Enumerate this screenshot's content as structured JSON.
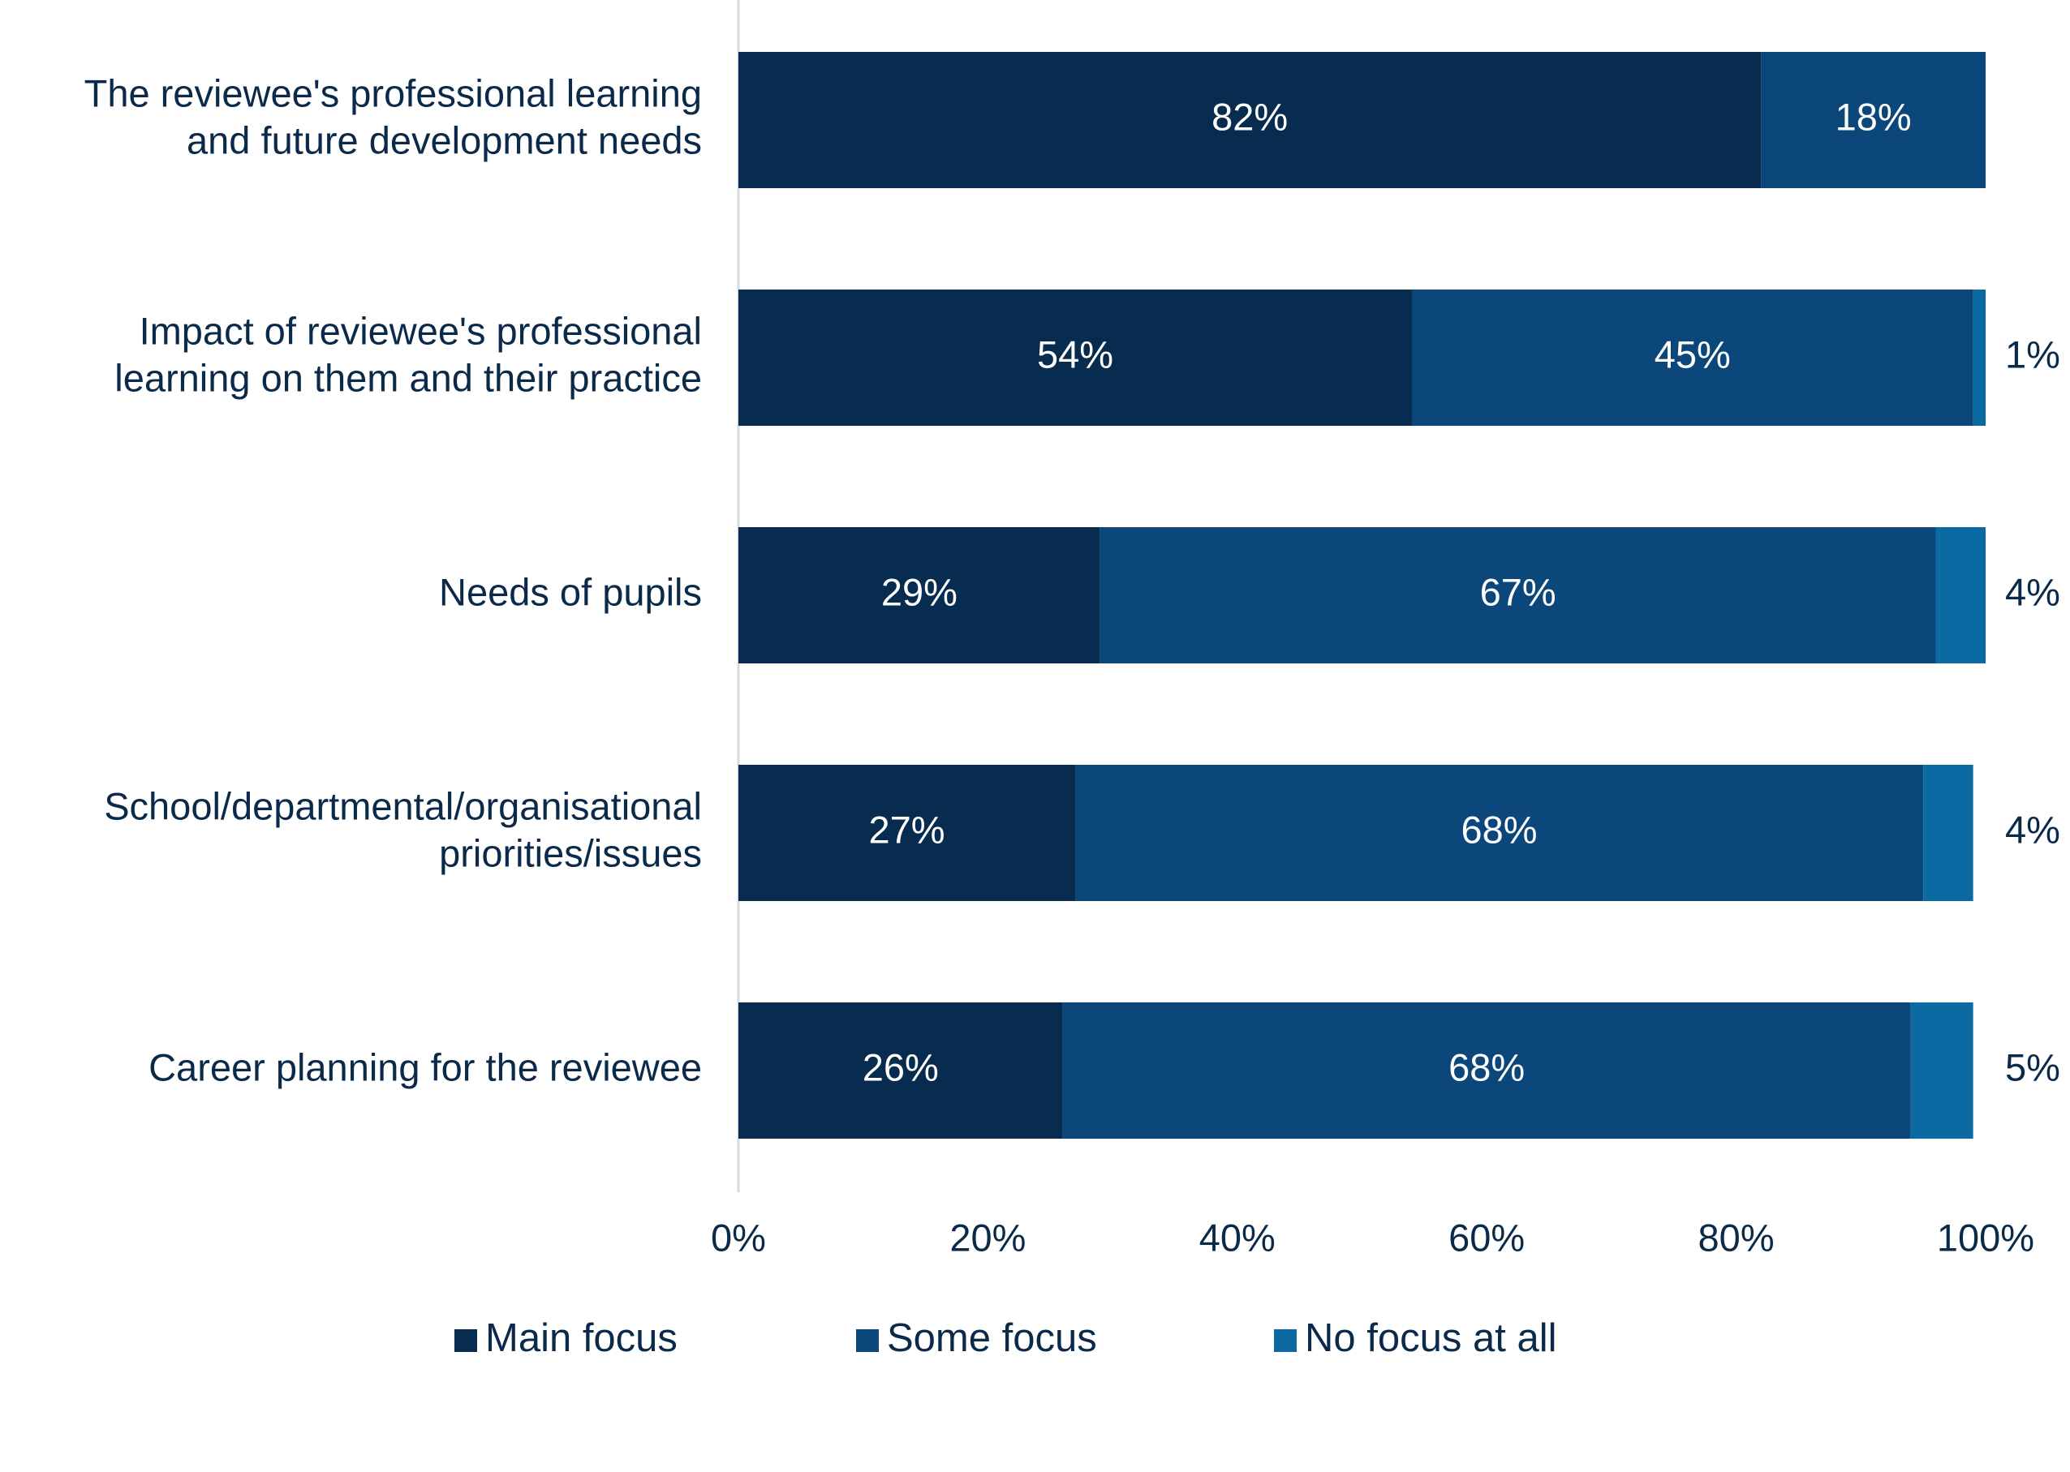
{
  "chart_data": {
    "type": "bar",
    "orientation": "horizontal",
    "stacked": true,
    "categories": [
      [
        "The reviewee's professional learning",
        "and future development needs"
      ],
      [
        "Impact of reviewee's professional",
        "learning on them and their practice"
      ],
      [
        "Needs of pupils"
      ],
      [
        "School/departmental/organisational",
        "priorities/issues"
      ],
      [
        "Career planning for the reviewee"
      ]
    ],
    "series": [
      {
        "name": "Main focus",
        "color": "#072c4f",
        "label_color": "#ffffff",
        "values": [
          82,
          54,
          29,
          27,
          26
        ],
        "labels": [
          "82%",
          "54%",
          "29%",
          "27%",
          "26%"
        ]
      },
      {
        "name": "Some focus",
        "color": "#0b477b",
        "label_color": "#ffffff",
        "values": [
          18,
          45,
          67,
          68,
          68
        ],
        "labels": [
          "18%",
          "45%",
          "67%",
          "68%",
          "68%"
        ]
      },
      {
        "name": "No focus at all",
        "color": "#0b6aa2",
        "label_color": "#0b2a4a",
        "values": [
          0,
          1,
          4,
          4,
          5
        ],
        "labels": [
          "",
          "1%",
          "4%",
          "4%",
          "5%"
        ]
      }
    ],
    "xlim": [
      0,
      100
    ],
    "xticks": [
      "0%",
      "20%",
      "40%",
      "60%",
      "80%",
      "100%"
    ],
    "grid": false,
    "legend": "bottom",
    "title": "",
    "xlabel": "",
    "ylabel": ""
  }
}
